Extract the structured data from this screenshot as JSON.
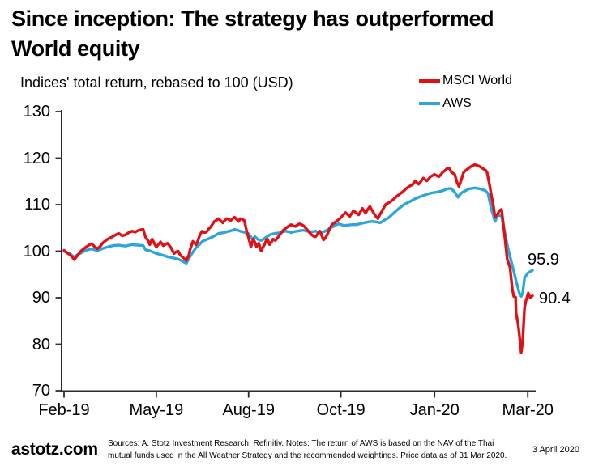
{
  "header": {
    "title_lines": [
      "Since inception: The strategy has outperformed",
      "World equity"
    ],
    "subtitle": "Indices' total return, rebased to 100 (USD)"
  },
  "legend": {
    "items": [
      {
        "label": "MSCI World",
        "color": "#e01116"
      },
      {
        "label": "AWS",
        "color": "#2ca6da"
      }
    ]
  },
  "chart_data": {
    "type": "line",
    "title": "Since inception: The strategy has outperformed World equity",
    "subtitle": "Indices' total return, rebased to 100 (USD)",
    "ylim": [
      70,
      130
    ],
    "y_ticks": [
      130,
      120,
      110,
      100,
      90,
      80,
      70
    ],
    "x_tick_labels": [
      "Feb-19",
      "May-19",
      "Aug-19",
      "Oct-19",
      "Jan-20",
      "Mar-20"
    ],
    "x_tick_pos": [
      0,
      0.197,
      0.394,
      0.591,
      0.791,
      0.99
    ],
    "grid": false,
    "legend_position": "top-right",
    "axis_color": "#2b2b2b",
    "series": [
      {
        "name": "MSCI World",
        "color": "#e01116",
        "end_label": "90.4",
        "end_value": 90.4,
        "x": [
          0,
          0.005,
          0.01,
          0.017,
          0.022,
          0.028,
          0.036,
          0.047,
          0.055,
          0.059,
          0.065,
          0.071,
          0.078,
          0.083,
          0.093,
          0.105,
          0.112,
          0.117,
          0.124,
          0.131,
          0.138,
          0.145,
          0.152,
          0.157,
          0.163,
          0.169,
          0.174,
          0.18,
          0.183,
          0.188,
          0.193,
          0.197,
          0.202,
          0.206,
          0.212,
          0.217,
          0.221,
          0.228,
          0.235,
          0.24,
          0.244,
          0.248,
          0.252,
          0.257,
          0.261,
          0.266,
          0.269,
          0.275,
          0.282,
          0.286,
          0.29,
          0.295,
          0.3,
          0.304,
          0.309,
          0.313,
          0.321,
          0.326,
          0.33,
          0.335,
          0.339,
          0.343,
          0.347,
          0.352,
          0.356,
          0.36,
          0.364,
          0.369,
          0.373,
          0.376,
          0.381,
          0.385,
          0.39,
          0.396,
          0.399,
          0.404,
          0.408,
          0.411,
          0.414,
          0.416,
          0.419,
          0.421,
          0.425,
          0.428,
          0.432,
          0.434,
          0.439,
          0.443,
          0.446,
          0.451,
          0.456,
          0.459,
          0.464,
          0.468,
          0.473,
          0.477,
          0.481,
          0.485,
          0.49,
          0.494,
          0.499,
          0.503,
          0.507,
          0.511,
          0.516,
          0.52,
          0.524,
          0.529,
          0.533,
          0.537,
          0.542,
          0.546,
          0.55,
          0.554,
          0.559,
          0.563,
          0.567,
          0.572,
          0.576,
          0.58,
          0.585,
          0.589,
          0.595,
          0.601,
          0.605,
          0.61,
          0.614,
          0.618,
          0.623,
          0.629,
          0.633,
          0.637,
          0.64,
          0.644,
          0.648,
          0.653,
          0.657,
          0.661,
          0.665,
          0.67,
          0.674,
          0.679,
          0.683,
          0.687,
          0.693,
          0.698,
          0.704,
          0.71,
          0.716,
          0.722,
          0.727,
          0.732,
          0.738,
          0.744,
          0.75,
          0.757,
          0.762,
          0.767,
          0.774,
          0.778,
          0.782,
          0.786,
          0.791,
          0.796,
          0.8,
          0.804,
          0.808,
          0.813,
          0.817,
          0.822,
          0.827,
          0.834,
          0.839,
          0.843,
          0.848,
          0.853,
          0.857,
          0.862,
          0.87,
          0.877,
          0.886,
          0.895,
          0.9,
          0.903,
          0.908,
          0.912,
          0.917,
          0.92,
          0.926,
          0.929,
          0.934,
          0.94,
          0.946,
          0.952,
          0.957,
          0.96,
          0.964,
          0.965,
          0.969,
          0.972,
          0.976,
          0.979,
          0.983,
          0.986,
          0.991,
          0.995,
          1
        ],
        "values": [
          100.2,
          99.7,
          99.4,
          98.8,
          98.2,
          99,
          100,
          100.9,
          101.4,
          101.6,
          101,
          100.5,
          101.1,
          101.8,
          102.6,
          103.2,
          103.6,
          103.8,
          103.3,
          103.5,
          104,
          104.3,
          104.1,
          104.4,
          104.6,
          104.7,
          103,
          102.2,
          101.4,
          102.6,
          101.6,
          100.9,
          101.5,
          102,
          101.2,
          101.5,
          101.7,
          100.8,
          99.5,
          99.9,
          100,
          99.2,
          98.8,
          98.4,
          98,
          99,
          100.3,
          102.1,
          101.4,
          102.3,
          103.5,
          104.3,
          104,
          104.1,
          104.8,
          105.2,
          106.4,
          106.7,
          107,
          106.5,
          106.1,
          106.6,
          107,
          106.8,
          106.6,
          107,
          107.3,
          106.8,
          106.4,
          107,
          106.8,
          106.6,
          104.3,
          102.1,
          100.9,
          102.6,
          101.8,
          100.9,
          101.5,
          101.7,
          100.6,
          100,
          100.9,
          101.4,
          102.4,
          102.6,
          101.4,
          102,
          102.6,
          102.3,
          102.9,
          103.3,
          104,
          104.5,
          104.9,
          105.2,
          105.5,
          105.7,
          105.4,
          105.3,
          105.7,
          105.9,
          105.7,
          105.5,
          105,
          104.5,
          104,
          103.5,
          103.2,
          103.1,
          103.8,
          104.3,
          103.4,
          102.4,
          103,
          103.8,
          104.8,
          105.7,
          106,
          106.3,
          106.7,
          107,
          107.7,
          108.3,
          107.9,
          107.5,
          108.1,
          108.7,
          108.3,
          107.8,
          108.5,
          109.2,
          108.7,
          108.2,
          108.9,
          109.6,
          108.9,
          108.2,
          107.6,
          107,
          107.8,
          108.7,
          109.4,
          110.1,
          110.4,
          110.7,
          111.2,
          111.8,
          112.2,
          112.7,
          113.1,
          113.6,
          114,
          114.3,
          115.1,
          114.4,
          115,
          115.7,
          115.1,
          115.5,
          116,
          116.2,
          116.5,
          116.2,
          116,
          116.4,
          116.9,
          117.3,
          117.7,
          117.9,
          117,
          116.5,
          114.8,
          113.9,
          115.3,
          116.9,
          117.3,
          117.7,
          118.3,
          118.6,
          118.3,
          117.7,
          117.4,
          117,
          114.5,
          112.2,
          109.5,
          107.3,
          108,
          108.7,
          109,
          104,
          98.3,
          96.5,
          91.9,
          90.3,
          90.1,
          86.7,
          84.5,
          82.1,
          78.2,
          80.5,
          87.8,
          89.3,
          91,
          90,
          90.4
        ]
      },
      {
        "name": "AWS",
        "color": "#2ca6da",
        "end_label": "95.9",
        "end_value": 95.9,
        "x": [
          0,
          0.005,
          0.01,
          0.017,
          0.022,
          0.028,
          0.036,
          0.047,
          0.059,
          0.071,
          0.083,
          0.093,
          0.105,
          0.117,
          0.131,
          0.145,
          0.157,
          0.169,
          0.174,
          0.183,
          0.19,
          0.197,
          0.209,
          0.221,
          0.231,
          0.244,
          0.252,
          0.261,
          0.266,
          0.273,
          0.283,
          0.29,
          0.295,
          0.307,
          0.318,
          0.33,
          0.342,
          0.352,
          0.36,
          0.364,
          0.371,
          0.376,
          0.383,
          0.387,
          0.393,
          0.396,
          0.402,
          0.408,
          0.413,
          0.417,
          0.421,
          0.426,
          0.43,
          0.435,
          0.439,
          0.445,
          0.451,
          0.457,
          0.463,
          0.468,
          0.473,
          0.479,
          0.485,
          0.491,
          0.497,
          0.504,
          0.511,
          0.518,
          0.525,
          0.531,
          0.537,
          0.543,
          0.549,
          0.555,
          0.561,
          0.567,
          0.573,
          0.58,
          0.586,
          0.592,
          0.598,
          0.606,
          0.615,
          0.624,
          0.632,
          0.641,
          0.65,
          0.658,
          0.666,
          0.675,
          0.684,
          0.693,
          0.705,
          0.715,
          0.727,
          0.739,
          0.75,
          0.762,
          0.774,
          0.784,
          0.796,
          0.808,
          0.819,
          0.826,
          0.834,
          0.841,
          0.848,
          0.857,
          0.865,
          0.877,
          0.888,
          0.9,
          0.905,
          0.912,
          0.92,
          0.926,
          0.934,
          0.943,
          0.948,
          0.955,
          0.96,
          0.965,
          0.972,
          0.976,
          0.979,
          0.983,
          0.99,
          1
        ],
        "values": [
          100,
          99.8,
          99.6,
          99.1,
          98.7,
          99.2,
          99.6,
          100.2,
          100.5,
          100.1,
          100.6,
          100.9,
          101.2,
          101.3,
          101.1,
          101.4,
          101.3,
          101.2,
          100.3,
          100.1,
          99.8,
          99.5,
          99.2,
          98.8,
          98.6,
          98.3,
          97.9,
          97.4,
          98.3,
          99.5,
          100.9,
          101.5,
          102.1,
          102.6,
          103.1,
          103.8,
          104,
          104.3,
          104.5,
          104.7,
          104.5,
          104.3,
          104.1,
          104,
          103.8,
          103.5,
          102.6,
          103.1,
          102.6,
          102.4,
          102.3,
          102.6,
          102.9,
          103.2,
          103.5,
          103.7,
          103.8,
          103.9,
          104,
          104.2,
          104.3,
          104.2,
          104,
          104.2,
          104.3,
          104.4,
          104.5,
          104.3,
          104.2,
          104.2,
          104.3,
          104.1,
          104,
          104.2,
          104.5,
          104.9,
          105.2,
          105.6,
          105.9,
          105.7,
          105.5,
          105.6,
          105.7,
          105.7,
          105.9,
          106.1,
          106.3,
          106.4,
          106.3,
          106.1,
          106.7,
          107.2,
          108.3,
          109.2,
          110.1,
          110.7,
          111.3,
          111.8,
          112.2,
          112.5,
          112.7,
          113,
          113.4,
          113.5,
          112.7,
          111.6,
          112.5,
          113,
          113.4,
          113.6,
          113.4,
          113,
          112.4,
          109.2,
          106.4,
          107.8,
          107.5,
          102.9,
          100.5,
          97.7,
          95.7,
          93.6,
          91,
          90.3,
          91,
          94.2,
          95.3,
          95.9
        ]
      }
    ]
  },
  "footer": {
    "brand": "astotz.com",
    "sources_lines": [
      "Sources: A. Stotz Investment Research, Refinitiv. Notes: The return of AWS is based on the NAV of the Thai",
      "mutual funds used in the All Weather Strategy and the recommended weightings. Price data as of 31 Mar 2020."
    ],
    "date": "3 April 2020"
  }
}
